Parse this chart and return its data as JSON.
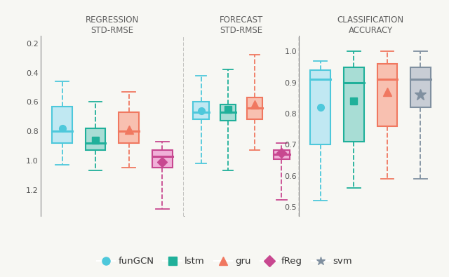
{
  "panels": [
    {
      "title": "REGRESSION\nSTD-RMSE",
      "inverted": true,
      "ylim": [
        1.38,
        0.15
      ],
      "yticks": [
        0.2,
        0.4,
        0.6,
        0.8,
        1.0,
        1.2
      ],
      "boxes": [
        {
          "name": "funGCN",
          "color": "#4ec8db",
          "facecolor": "#c0e8f2",
          "whishi": 0.46,
          "q3": 0.63,
          "median": 0.8,
          "q1": 0.88,
          "whislo": 1.03,
          "mean": 0.78,
          "marker": "o",
          "x": 1
        },
        {
          "name": "lstm",
          "color": "#20b09a",
          "facecolor": "#a8ddd5",
          "whishi": 0.6,
          "q3": 0.78,
          "median": 0.88,
          "q1": 0.93,
          "whislo": 1.07,
          "mean": 0.86,
          "marker": "s",
          "x": 2
        },
        {
          "name": "gru",
          "color": "#f07860",
          "facecolor": "#f8c0b0",
          "whishi": 0.53,
          "q3": 0.67,
          "median": 0.8,
          "q1": 0.88,
          "whislo": 1.05,
          "mean": 0.79,
          "marker": "^",
          "x": 3
        },
        {
          "name": "fReg",
          "color": "#c84890",
          "facecolor": "#f0b0d8",
          "whishi": 0.87,
          "q3": 0.93,
          "median": 0.97,
          "q1": 1.05,
          "whislo": 1.33,
          "mean": 1.01,
          "marker": "D",
          "x": 4
        }
      ]
    },
    {
      "title": "FORECAST\nSTD-RMSE",
      "inverted": true,
      "ylim": [
        1.38,
        0.15
      ],
      "yticks": [
        0.2,
        0.4,
        0.6,
        0.8,
        1.0,
        1.2
      ],
      "boxes": [
        {
          "name": "funGCN",
          "color": "#4ec8db",
          "facecolor": "#c0e8f2",
          "whishi": 0.42,
          "q3": 0.6,
          "median": 0.67,
          "q1": 0.72,
          "whislo": 1.02,
          "mean": 0.66,
          "marker": "o",
          "x": 1
        },
        {
          "name": "lstm",
          "color": "#20b09a",
          "facecolor": "#a8ddd5",
          "whishi": 0.38,
          "q3": 0.62,
          "median": 0.67,
          "q1": 0.73,
          "whislo": 1.07,
          "mean": 0.65,
          "marker": "s",
          "x": 2
        },
        {
          "name": "gru",
          "color": "#f07860",
          "facecolor": "#f8c0b0",
          "whishi": 0.28,
          "q3": 0.57,
          "median": 0.64,
          "q1": 0.72,
          "whislo": 0.93,
          "mean": 0.62,
          "marker": "^",
          "x": 3
        },
        {
          "name": "fReg",
          "color": "#c84890",
          "facecolor": "#f0b0d8",
          "whishi": 0.88,
          "q3": 0.93,
          "median": 0.96,
          "q1": 0.99,
          "whislo": 1.27,
          "mean": 0.95,
          "marker": "D",
          "x": 4
        }
      ]
    },
    {
      "title": "CLASSIFICATION\nACCURACY",
      "inverted": false,
      "ylim": [
        0.47,
        1.05
      ],
      "yticks": [
        0.5,
        0.6,
        0.7,
        0.8,
        0.9,
        1.0
      ],
      "boxes": [
        {
          "name": "funGCN",
          "color": "#4ec8db",
          "facecolor": "#c0e8f2",
          "whislo": 0.52,
          "q1": 0.7,
          "median": 0.91,
          "q3": 0.94,
          "whishi": 0.97,
          "mean": 0.82,
          "marker": "o",
          "x": 1
        },
        {
          "name": "lstm",
          "color": "#20b09a",
          "facecolor": "#a8ddd5",
          "whislo": 0.56,
          "q1": 0.71,
          "median": 0.9,
          "q3": 0.95,
          "whishi": 1.0,
          "mean": 0.84,
          "marker": "s",
          "x": 2
        },
        {
          "name": "gru",
          "color": "#f07860",
          "facecolor": "#f8c0b0",
          "whislo": 0.59,
          "q1": 0.76,
          "median": 0.91,
          "q3": 0.96,
          "whishi": 1.0,
          "mean": 0.87,
          "marker": "^",
          "x": 3
        },
        {
          "name": "svm",
          "color": "#8090a0",
          "facecolor": "#c8cdd5",
          "whislo": 0.59,
          "q1": 0.82,
          "median": 0.91,
          "q3": 0.95,
          "whishi": 1.0,
          "mean": 0.86,
          "marker": "*",
          "x": 4
        }
      ]
    }
  ],
  "legend_entries": [
    {
      "label": "funGCN",
      "marker": "o",
      "color": "#4ec8db"
    },
    {
      "label": "lstm",
      "marker": "s",
      "color": "#20b09a"
    },
    {
      "label": "gru",
      "marker": "^",
      "color": "#f07860"
    },
    {
      "label": "fReg",
      "marker": "D",
      "color": "#c84890"
    },
    {
      "label": "svm",
      "marker": "*",
      "color": "#8090a0"
    }
  ],
  "box_width": 0.6,
  "bg_color": "#f7f7f3"
}
